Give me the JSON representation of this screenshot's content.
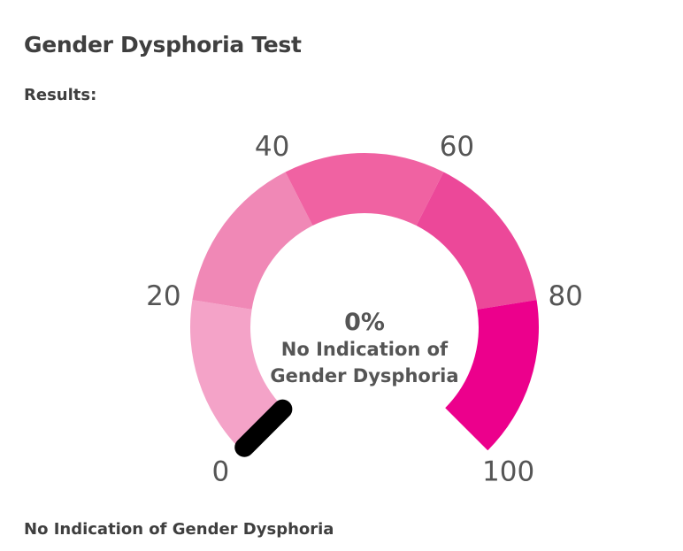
{
  "header": {
    "title": "Gender Dysphoria Test",
    "results_label": "Results:"
  },
  "gauge": {
    "value": 0,
    "min": 0,
    "max": 100,
    "value_text": "0%",
    "label_line1": "No Indication of",
    "label_line2": "Gender Dysphoria",
    "ticks": [
      "0",
      "20",
      "40",
      "60",
      "80",
      "100"
    ],
    "segment_colors": [
      "#f4a3c8",
      "#f088b6",
      "#f062a2",
      "#ec4899",
      "#ec008c"
    ],
    "needle_color": "#000000"
  },
  "footer": {
    "result_text": "No Indication of Gender Dysphoria"
  }
}
